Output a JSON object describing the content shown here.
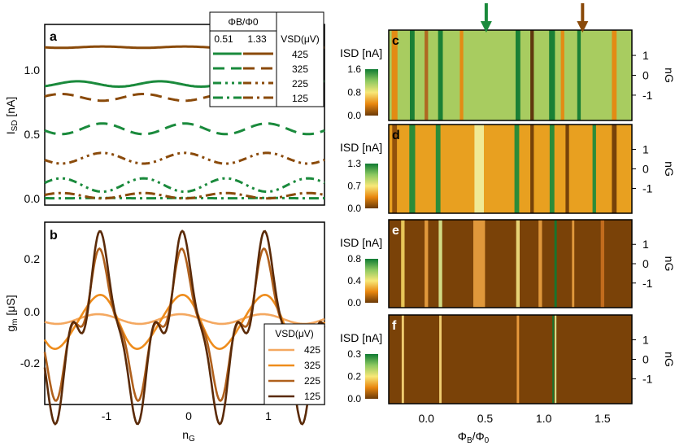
{
  "chart_data": [
    {
      "type": "line",
      "panel": "a",
      "ylabel": "I_SD [nA]",
      "xlim": [
        -1.7,
        1.7
      ],
      "ylim": [
        -0.05,
        1.3
      ],
      "yticks": [
        "0.0",
        "0.5",
        "1.0"
      ],
      "legend_title": "ΦB/Φ0",
      "legend_cols": [
        "0.51",
        "1.33"
      ],
      "legend_vsd_header": "VSD(μV)",
      "legend_vsd": [
        "425",
        "325",
        "225",
        "125"
      ],
      "series": [
        {
          "name": "0.51 / 425",
          "color": "#1a8a3c",
          "dash": "solid",
          "mean": 0.855,
          "amp": 0.02,
          "phase": 0.3
        },
        {
          "name": "1.33 / 425",
          "color": "#8a4a0a",
          "dash": "solid",
          "mean": 1.13,
          "amp": 0.005,
          "phase": 0
        },
        {
          "name": "0.51 / 325",
          "color": "#1a8a3c",
          "dash": "dashed",
          "mean": 0.52,
          "amp": 0.04,
          "phase": 0
        },
        {
          "name": "1.33 / 325",
          "color": "#8a4a0a",
          "dash": "dashed",
          "mean": 0.755,
          "amp": 0.025,
          "phase": 0.5
        },
        {
          "name": "0.51 / 225",
          "color": "#1a8a3c",
          "dash": "dashdotdot",
          "mean": 0.1,
          "amp": 0.05,
          "phase": 0.5
        },
        {
          "name": "1.33 / 225",
          "color": "#8a4a0a",
          "dash": "dashdotdot",
          "mean": 0.3,
          "amp": 0.04,
          "phase": 0
        },
        {
          "name": "0.51 / 125",
          "color": "#1a8a3c",
          "dash": "dashdot",
          "mean": 0.002,
          "amp": 0.001,
          "phase": 0
        },
        {
          "name": "1.33 / 125",
          "color": "#8a4a0a",
          "dash": "dashdot",
          "mean": 0.02,
          "amp": 0.02,
          "phase": 0.5
        }
      ]
    },
    {
      "type": "line",
      "panel": "b",
      "xlabel": "n_G",
      "ylabel": "g_m [μS]",
      "xlim": [
        -1.7,
        1.7
      ],
      "ylim": [
        -0.3,
        0.34
      ],
      "xticks": [
        "-1",
        "0",
        "1"
      ],
      "yticks": [
        "-0.2",
        "0.0",
        "0.2"
      ],
      "legend_title": "VSD(μV)",
      "series": [
        {
          "name": "425",
          "color": "#f4a860",
          "amp": 0.02
        },
        {
          "name": "325",
          "color": "#ee8c1c",
          "amp": 0.11
        },
        {
          "name": "225",
          "color": "#b0601c",
          "amp": 0.24
        },
        {
          "name": "125",
          "color": "#5a2a08",
          "amp": 0.3
        }
      ]
    },
    {
      "type": "heatmap",
      "panel": "c",
      "colorbar_label": "ISD [nA]",
      "colorbar_ticks": [
        "0.0",
        "0.8",
        "1.6"
      ],
      "ylabel": "n_G",
      "yticks": [
        "1",
        "0",
        "-1"
      ]
    },
    {
      "type": "heatmap",
      "panel": "d",
      "colorbar_label": "ISD [nA]",
      "colorbar_ticks": [
        "0.0",
        "0.7",
        "1.3"
      ],
      "ylabel": "n_G",
      "yticks": [
        "1",
        "0",
        "-1"
      ]
    },
    {
      "type": "heatmap",
      "panel": "e",
      "colorbar_label": "ISD [nA]",
      "colorbar_ticks": [
        "0.0",
        "0.4",
        "0.8"
      ],
      "ylabel": "n_G",
      "yticks": [
        "1",
        "0",
        "-1"
      ]
    },
    {
      "type": "heatmap",
      "panel": "f",
      "colorbar_label": "ISD [nA]",
      "colorbar_ticks": [
        "0.0",
        "0.2",
        "0.3"
      ],
      "xlabel": "ΦB/Φ0",
      "ylabel": "n_G",
      "xlim": [
        -0.32,
        1.75
      ],
      "xticks": [
        "0.0",
        "0.5",
        "1.0",
        "1.5"
      ],
      "yticks": [
        "1",
        "0",
        "-1"
      ],
      "markers": [
        {
          "x": 0.51,
          "color": "#1a8a3c"
        },
        {
          "x": 1.33,
          "color": "#8a4a0a"
        }
      ]
    }
  ]
}
